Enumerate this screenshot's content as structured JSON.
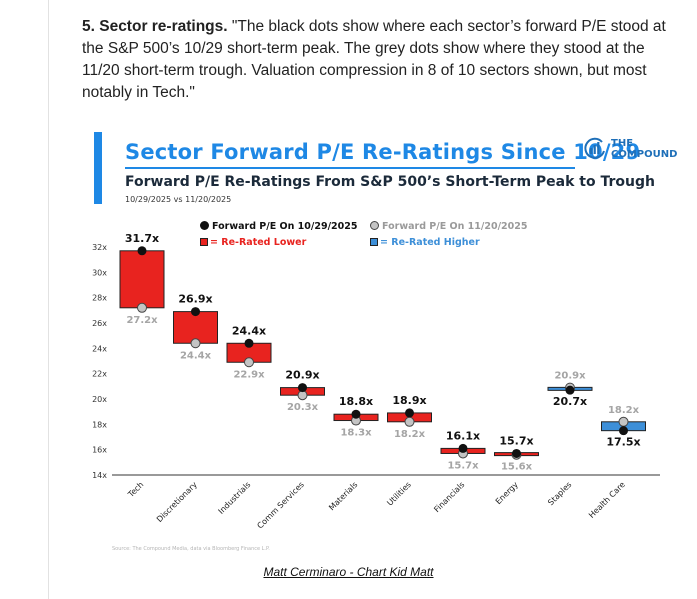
{
  "article": {
    "number": "5. Sector re-ratings.",
    "quote": " \"The black dots show where each sector’s forward P/E stood at the S&P 500’s 10/29 short-term peak. The grey dots show where they stood at the 11/20 short-term trough. Valuation compression in 8 of 10 sectors shown, but most notably in Tech.\""
  },
  "logo": {
    "line1": "THE",
    "line2": "COMPOUND"
  },
  "chart_data": {
    "type": "range-dot",
    "title": "Sector Forward P/E Re-Ratings Since 10/29",
    "subtitle": "Forward P/E Re-Ratings From S&P 500’s Short-Term Peak to Trough",
    "date_range": "10/29/2025 vs 11/20/2025",
    "legend": {
      "peak": "Forward P/E On 10/29/2025",
      "trough": "Forward P/E On 11/20/2025",
      "lower": "= Re-Rated Lower",
      "higher": "= Re-Rated Higher"
    },
    "ylim": [
      14,
      32
    ],
    "yticks": [
      "14x",
      "16x",
      "18x",
      "20x",
      "22x",
      "24x",
      "26x",
      "28x",
      "30x",
      "32x"
    ],
    "categories": [
      "Tech",
      "Discretionary",
      "Industrials",
      "Comm Services",
      "Materials",
      "Utilities",
      "Financials",
      "Energy",
      "Staples",
      "Health Care"
    ],
    "series": [
      {
        "name": "Forward P/E On 10/29/2025",
        "values": [
          31.7,
          26.9,
          24.4,
          20.9,
          18.8,
          18.9,
          16.1,
          15.7,
          20.7,
          17.5
        ]
      },
      {
        "name": "Forward P/E On 11/20/2025",
        "values": [
          27.2,
          24.4,
          22.9,
          20.3,
          18.3,
          18.2,
          15.7,
          15.6,
          20.9,
          18.2
        ]
      }
    ],
    "peak_labels": [
      "31.7x",
      "26.9x",
      "24.4x",
      "20.9x",
      "18.8x",
      "18.9x",
      "16.1x",
      "15.7x",
      "20.7x",
      "17.5x"
    ],
    "trough_labels": [
      "27.2x",
      "24.4x",
      "22.9x",
      "20.3x",
      "18.3x",
      "18.2x",
      "15.7x",
      "15.6x",
      "20.9x",
      "18.2x"
    ],
    "colors": {
      "lower": "#e8231f",
      "higher": "#3d8fd8",
      "peak_dot": "#111111",
      "trough_dot": "#c4c4c4",
      "accent": "#1e88e5"
    }
  },
  "source_note": "Source: The Compound Media, data via Bloomberg Finance L.P.",
  "credit": "Matt Cerminaro - Chart Kid Matt"
}
